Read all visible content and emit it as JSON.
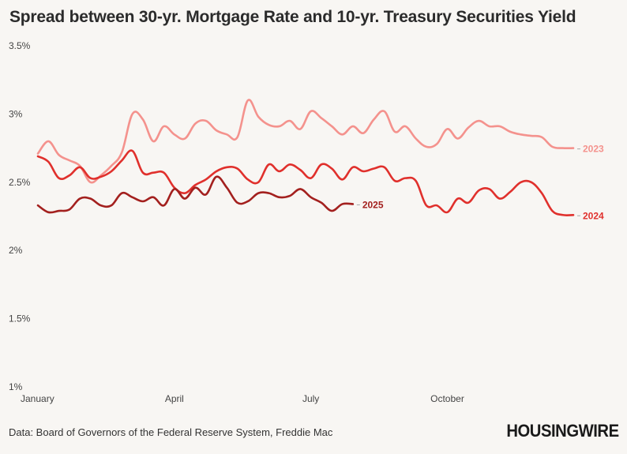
{
  "title": "Spread between 30-yr. Mortgage Rate and 10-yr. Treasury Securities Yield",
  "source": "Data: Board of Governors of the Federal Reserve System, Freddie Mac",
  "logo": "HOUSINGWIRE",
  "chart_data": {
    "type": "line",
    "title": "Spread between 30-yr. Mortgage Rate and 10-yr. Treasury Securities Yield",
    "xlabel": "",
    "ylabel": "",
    "x_unit": "week of year",
    "xlim": [
      1,
      52
    ],
    "ylim": [
      1,
      3.5
    ],
    "grid": false,
    "legend": "inline labels at line ends",
    "x_ticks": [
      {
        "x": 1,
        "label": "January"
      },
      {
        "x": 14,
        "label": "April"
      },
      {
        "x": 27,
        "label": "July"
      },
      {
        "x": 40,
        "label": "October"
      }
    ],
    "y_ticks": [
      {
        "y": 1,
        "label": "1%"
      },
      {
        "y": 1.5,
        "label": "1.5%"
      },
      {
        "y": 2,
        "label": "2%"
      },
      {
        "y": 2.5,
        "label": "2.5%"
      },
      {
        "y": 3,
        "label": "3%"
      },
      {
        "y": 3.5,
        "label": "3.5%"
      }
    ],
    "series": [
      {
        "name": "2023",
        "color": "#f4928d",
        "x": [
          1,
          2,
          3,
          4,
          5,
          6,
          7,
          8,
          9,
          10,
          11,
          12,
          13,
          14,
          15,
          16,
          17,
          18,
          19,
          20,
          21,
          22,
          23,
          24,
          25,
          26,
          27,
          28,
          29,
          30,
          31,
          32,
          33,
          34,
          35,
          36,
          37,
          38,
          39,
          40,
          41,
          42,
          43,
          44,
          45,
          46,
          47,
          48,
          49,
          50,
          51,
          52
        ],
        "y": [
          2.71,
          2.8,
          2.7,
          2.66,
          2.62,
          2.5,
          2.55,
          2.62,
          2.72,
          3.0,
          2.96,
          2.8,
          2.91,
          2.85,
          2.82,
          2.93,
          2.95,
          2.88,
          2.85,
          2.83,
          3.1,
          2.98,
          2.92,
          2.91,
          2.95,
          2.89,
          3.02,
          2.97,
          2.91,
          2.85,
          2.91,
          2.86,
          2.96,
          3.02,
          2.87,
          2.91,
          2.82,
          2.76,
          2.78,
          2.89,
          2.82,
          2.9,
          2.95,
          2.91,
          2.91,
          2.87,
          2.85,
          2.84,
          2.83,
          2.76,
          2.75,
          2.75
        ]
      },
      {
        "name": "2024",
        "color": "#e0302c",
        "x": [
          1,
          2,
          3,
          4,
          5,
          6,
          7,
          8,
          9,
          10,
          11,
          12,
          13,
          14,
          15,
          16,
          17,
          18,
          19,
          20,
          21,
          22,
          23,
          24,
          25,
          26,
          27,
          28,
          29,
          30,
          31,
          32,
          33,
          34,
          35,
          36,
          37,
          38,
          39,
          40,
          41,
          42,
          43,
          44,
          45,
          46,
          47,
          48,
          49,
          50,
          51,
          52
        ],
        "y": [
          2.69,
          2.65,
          2.53,
          2.55,
          2.61,
          2.53,
          2.54,
          2.58,
          2.66,
          2.73,
          2.57,
          2.57,
          2.57,
          2.46,
          2.42,
          2.48,
          2.52,
          2.58,
          2.61,
          2.6,
          2.52,
          2.5,
          2.63,
          2.58,
          2.63,
          2.59,
          2.53,
          2.63,
          2.6,
          2.52,
          2.61,
          2.58,
          2.6,
          2.61,
          2.51,
          2.53,
          2.51,
          2.33,
          2.33,
          2.28,
          2.38,
          2.35,
          2.44,
          2.45,
          2.38,
          2.43,
          2.5,
          2.5,
          2.42,
          2.29,
          2.26,
          2.26
        ]
      },
      {
        "name": "2025",
        "color": "#a3201e",
        "x": [
          1,
          2,
          3,
          4,
          5,
          6,
          7,
          8,
          9,
          10,
          11,
          12,
          13,
          14,
          15,
          16,
          17,
          18,
          19,
          20,
          21,
          22,
          23,
          24,
          25,
          26,
          27,
          28,
          29,
          30,
          31
        ],
        "y": [
          2.33,
          2.28,
          2.29,
          2.3,
          2.38,
          2.38,
          2.33,
          2.33,
          2.42,
          2.39,
          2.36,
          2.39,
          2.33,
          2.45,
          2.38,
          2.46,
          2.41,
          2.54,
          2.46,
          2.35,
          2.36,
          2.42,
          2.42,
          2.39,
          2.4,
          2.45,
          2.39,
          2.35,
          2.29,
          2.34,
          2.34
        ]
      }
    ]
  }
}
